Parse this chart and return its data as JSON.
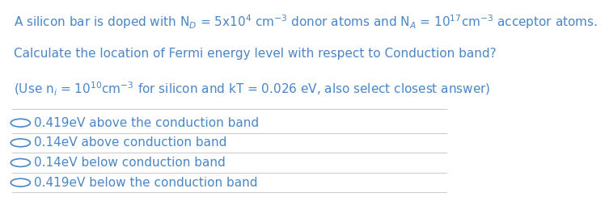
{
  "bg_color": "#ffffff",
  "text_color": "#4a86c8",
  "line1": "A silicon bar is doped with N$_{D}$ = 5x10$^{4}$ cm$^{-3}$ donor atoms and N$_{A}$ = 10$^{17}$cm$^{-3}$ acceptor atoms.",
  "line2": "Calculate the location of Fermi energy level with respect to Conduction band?",
  "line3": "(Use n$_{i}$ = 10$^{10}$cm$^{-3}$ for silicon and kT = 0.026 eV, also select closest answer)",
  "options": [
    "0.419eV above the conduction band",
    "0.14eV above conduction band",
    "0.14eV below conduction band",
    "0.419eV below the conduction band"
  ],
  "divider_color": "#cccccc",
  "font_size_question": 11.0,
  "font_size_options": 11.0
}
